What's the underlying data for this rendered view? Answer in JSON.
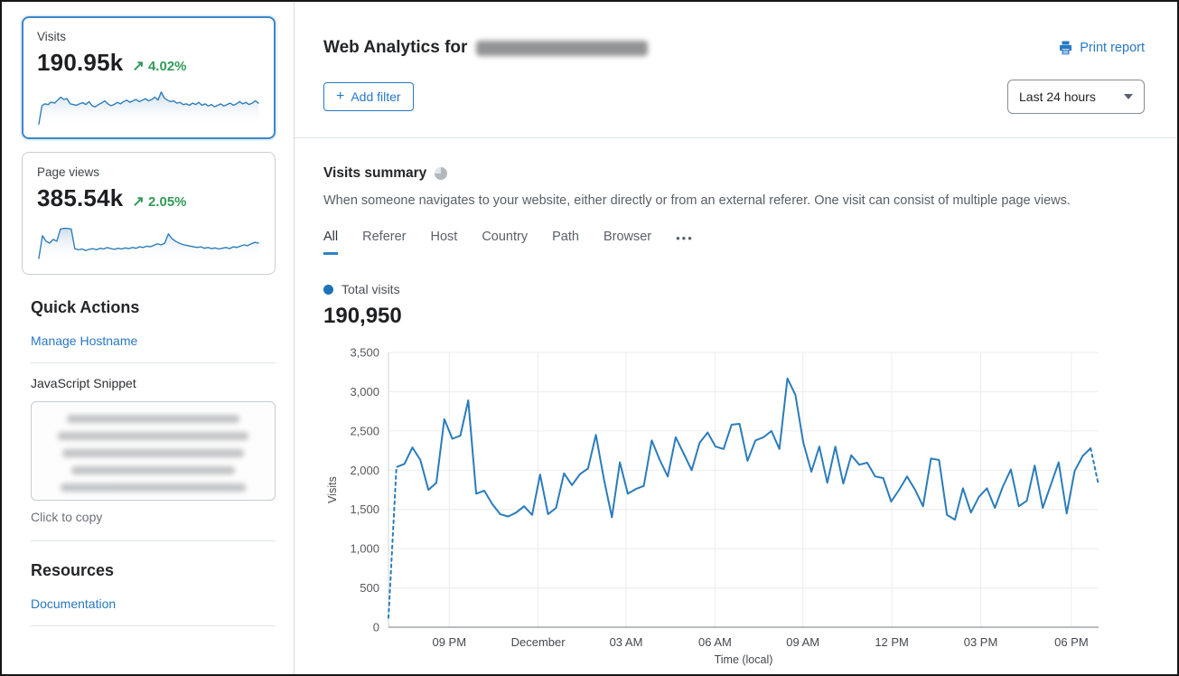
{
  "colors": {
    "link_blue": "#2878c3",
    "chart_line_blue": "#2b7cba",
    "legend_dot_blue": "#1d72ba",
    "positive_green": "#339a57",
    "selected_card_border": "#3c87c7"
  },
  "sidebar": {
    "visits_card": {
      "label": "Visits",
      "value": "190.95k",
      "arrow": "↗",
      "delta": "4.02%",
      "spark": [
        5,
        55,
        60,
        58,
        65,
        62,
        70,
        78,
        72,
        74,
        60,
        58,
        56,
        60,
        63,
        58,
        66,
        55,
        52,
        58,
        62,
        68,
        60,
        55,
        58,
        64,
        60,
        66,
        70,
        64,
        68,
        72,
        66,
        70,
        74,
        68,
        72,
        78,
        70,
        92,
        76,
        70,
        66,
        68,
        62,
        64,
        58,
        60,
        56,
        62,
        58,
        64,
        56,
        60,
        54,
        58,
        52,
        56,
        60,
        54,
        58,
        62,
        56,
        60,
        66,
        60,
        64,
        58,
        62,
        68,
        62
      ]
    },
    "pageviews_card": {
      "label": "Page views",
      "value": "385.54k",
      "arrow": "↗",
      "delta": "2.05%",
      "spark": [
        8,
        70,
        55,
        50,
        60,
        55,
        88,
        90,
        90,
        88,
        35,
        32,
        34,
        30,
        33,
        35,
        32,
        36,
        34,
        38,
        35,
        33,
        36,
        34,
        37,
        35,
        38,
        36,
        40,
        38,
        42,
        40,
        44,
        48,
        45,
        50,
        75,
        62,
        55,
        50,
        46,
        44,
        42,
        40,
        38,
        40,
        36,
        38,
        35,
        37,
        34,
        36,
        38,
        35,
        40,
        38,
        42,
        45,
        43,
        48,
        52,
        50
      ]
    },
    "quick_actions": {
      "title": "Quick Actions",
      "manage_hostname": "Manage Hostname",
      "js_snippet_label": "JavaScript Snippet",
      "click_to_copy": "Click to copy"
    },
    "resources": {
      "title": "Resources",
      "documentation": "Documentation"
    }
  },
  "header": {
    "title": "Web Analytics for",
    "print_report": "Print report",
    "add_filter_plus": "+",
    "add_filter_label": "Add filter",
    "time_range": "Last 24 hours"
  },
  "summary": {
    "title": "Visits summary",
    "description": "When someone navigates to your website, either directly or from an external referer. One visit can consist of multiple page views.",
    "tabs": [
      "All",
      "Referer",
      "Host",
      "Country",
      "Path",
      "Browser"
    ],
    "active_tab": "All",
    "more_label": "•••",
    "legend_label": "Total visits",
    "total": "190,950"
  },
  "chart_data": {
    "type": "line",
    "title": "Visits summary",
    "xlabel": "Time (local)",
    "ylabel": "Visits",
    "ylim": [
      0,
      3500
    ],
    "grid": true,
    "legend_position": "top-left",
    "yticks": [
      0,
      500,
      1000,
      1500,
      2000,
      2500,
      3000,
      3500
    ],
    "ytick_labels": [
      "0",
      "500",
      "1,000",
      "1,500",
      "2,000",
      "2,500",
      "3,000",
      "3,500"
    ],
    "xtick_labels": [
      "09 PM",
      "December",
      "03 AM",
      "06 AM",
      "09 AM",
      "12 PM",
      "03 PM",
      "06 PM"
    ],
    "series": [
      {
        "name": "Total visits",
        "dashed_lead_segments": 1,
        "dashed_tail_segments": 1,
        "values": [
          120,
          2040,
          2080,
          2290,
          2130,
          1750,
          1840,
          2650,
          2400,
          2440,
          2890,
          1700,
          1740,
          1570,
          1440,
          1410,
          1460,
          1540,
          1430,
          1945,
          1440,
          1520,
          1960,
          1810,
          1950,
          2020,
          2450,
          1890,
          1400,
          2100,
          1700,
          1760,
          1800,
          2380,
          2130,
          1920,
          2420,
          2210,
          2000,
          2350,
          2480,
          2300,
          2270,
          2580,
          2590,
          2120,
          2380,
          2420,
          2500,
          2270,
          3170,
          2960,
          2350,
          1980,
          2300,
          1840,
          2300,
          1830,
          2190,
          2070,
          2095,
          1920,
          1900,
          1600,
          1750,
          1920,
          1750,
          1540,
          2150,
          2130,
          1430,
          1370,
          1770,
          1460,
          1660,
          1770,
          1520,
          1790,
          2010,
          1540,
          1610,
          2060,
          1520,
          1810,
          2100,
          1450,
          1990,
          2180,
          2280,
          1810
        ]
      }
    ]
  }
}
